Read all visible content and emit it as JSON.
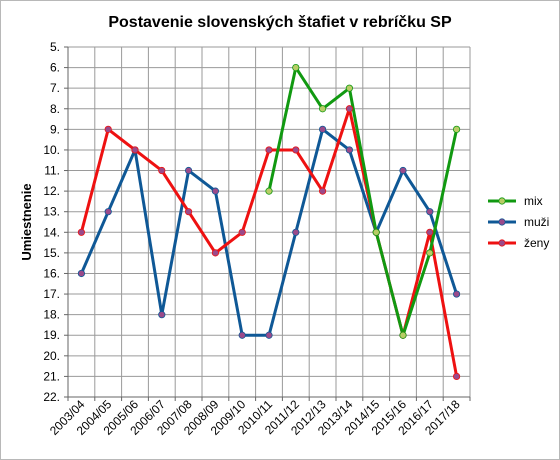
{
  "chart_data": {
    "type": "line",
    "title": "Postavenie slovenských štafiet v rebríčku SP",
    "xlabel": "",
    "ylabel": "Umiestnenie",
    "y_axis": {
      "min": 5,
      "max": 22,
      "step": 1,
      "inverted": true,
      "tick_suffix": "."
    },
    "categories": [
      "2003/04",
      "2004/05",
      "2005/06",
      "2006/07",
      "2007/08",
      "2008/09",
      "2009/10",
      "2010/11",
      "2011/12",
      "2012/13",
      "2013/14",
      "2014/15",
      "2015/16",
      "2016/17",
      "2017/18"
    ],
    "grid": true,
    "legend": "right",
    "series": [
      {
        "name": "mix",
        "color": "#119911",
        "marker_color": "#b8cc66",
        "values": [
          null,
          null,
          null,
          null,
          null,
          null,
          null,
          12,
          6,
          8,
          7,
          14,
          19,
          15,
          9
        ]
      },
      {
        "name": "muži",
        "color": "#0f5896",
        "marker_color": "#9a4a8a",
        "values": [
          16,
          13,
          10,
          18,
          11,
          12,
          19,
          19,
          14,
          9,
          10,
          14,
          11,
          13,
          17
        ]
      },
      {
        "name": "ženy",
        "color": "#ee1111",
        "marker_color": "#9a4a8a",
        "values": [
          14,
          9,
          10,
          11,
          13,
          15,
          14,
          10,
          10,
          12,
          8,
          14,
          19,
          14,
          21
        ]
      }
    ]
  }
}
